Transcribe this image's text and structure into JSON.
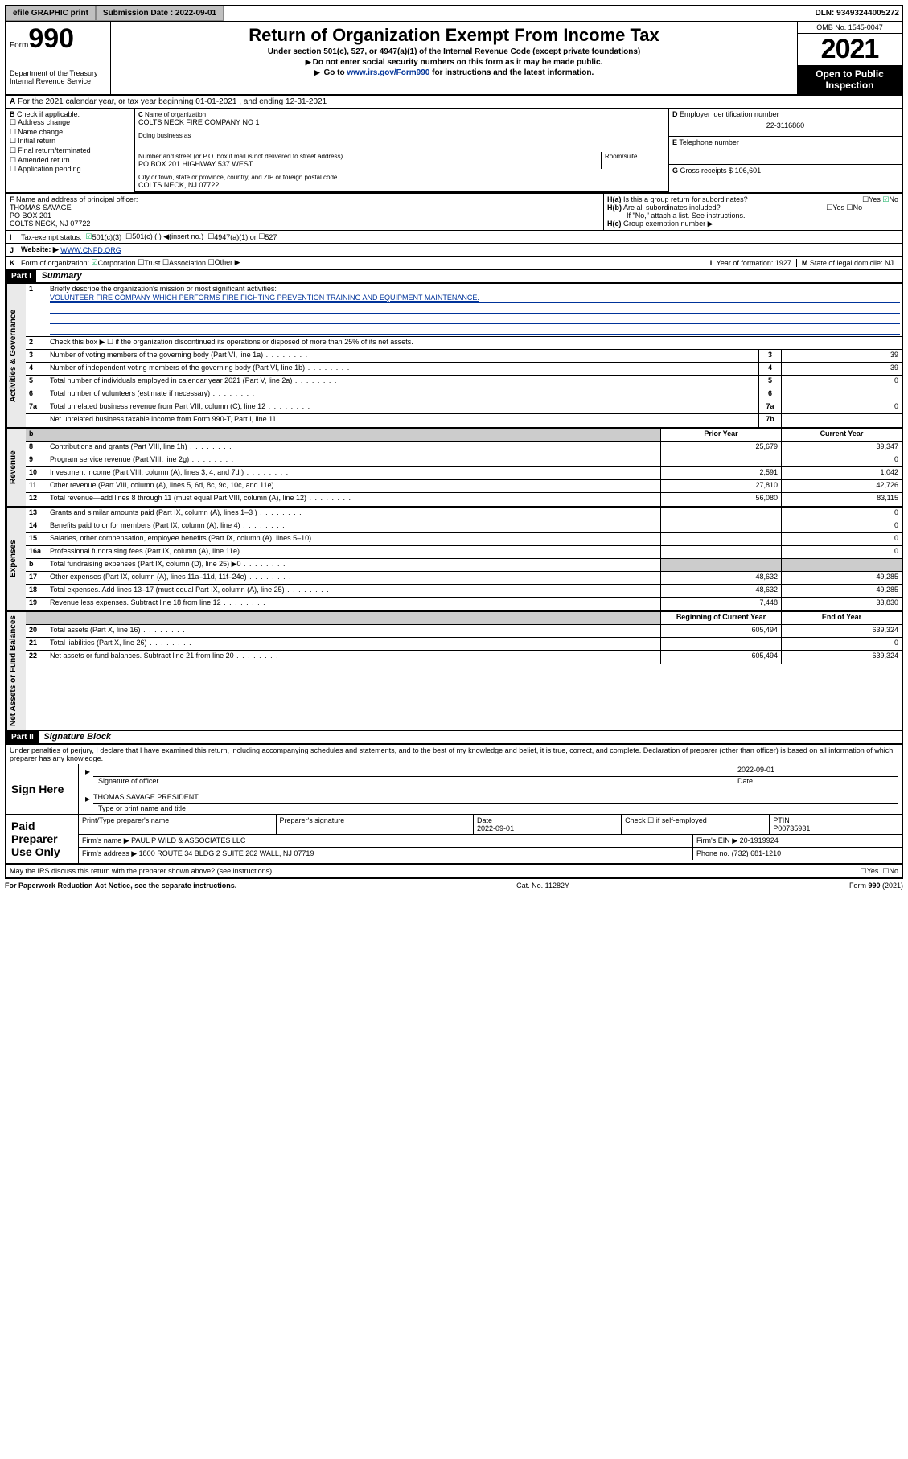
{
  "topbar": {
    "efile": "efile GRAPHIC print",
    "subdate_lbl": "Submission Date : 2022-09-01",
    "dln": "DLN: 93493244005272"
  },
  "header": {
    "form_word": "Form",
    "form_num": "990",
    "dept": "Department of the Treasury\nInternal Revenue Service",
    "title": "Return of Organization Exempt From Income Tax",
    "sub1": "Under section 501(c), 527, or 4947(a)(1) of the Internal Revenue Code (except private foundations)",
    "sub2": "Do not enter social security numbers on this form as it may be made public.",
    "sub3_prefix": "Go to ",
    "sub3_link": "www.irs.gov/Form990",
    "sub3_suffix": " for instructions and the latest information.",
    "omb": "OMB No. 1545-0047",
    "year": "2021",
    "inspect1": "Open to Public",
    "inspect2": "Inspection"
  },
  "rowA": "For the 2021 calendar year, or tax year beginning 01-01-2021   , and ending 12-31-2021",
  "sectionB": {
    "label": "Check if applicable:",
    "items": [
      "Address change",
      "Name change",
      "Initial return",
      "Final return/terminated",
      "Amended return",
      "Application pending"
    ]
  },
  "sectionC": {
    "name_lbl": "Name of organization",
    "name": "COLTS NECK FIRE COMPANY NO 1",
    "dba_lbl": "Doing business as",
    "addr_lbl": "Number and street (or P.O. box if mail is not delivered to street address)",
    "addr": "PO BOX 201\nPO BOX 201 HIGHWAY 537 WEST",
    "room_lbl": "Room/suite",
    "city_lbl": "City or town, state or province, country, and ZIP or foreign postal code",
    "city": "COLTS NECK, NJ  07722"
  },
  "sectionD": {
    "lbl": "Employer identification number",
    "val": "22-3116860"
  },
  "sectionE": {
    "lbl": "Telephone number",
    "val": ""
  },
  "sectionG": {
    "lbl": "Gross receipts $",
    "val": "106,601"
  },
  "sectionF": {
    "lbl": "Name and address of principal officer:",
    "name": "THOMAS SAVAGE",
    "addr1": "PO BOX 201",
    "addr2": "COLTS NECK, NJ  07722"
  },
  "sectionH": {
    "a": "Is this a group return for subordinates?",
    "b": "Are all subordinates included?",
    "bnote": "If \"No,\" attach a list. See instructions.",
    "c": "Group exemption number ▶"
  },
  "sectionI": {
    "lbl": "Tax-exempt status:",
    "opts": [
      "501(c)(3)",
      "501(c) (  ) ◀(insert no.)",
      "4947(a)(1) or",
      "527"
    ]
  },
  "sectionJ": {
    "lbl": "Website: ▶",
    "val": "WWW.CNFD.ORG"
  },
  "sectionK": {
    "lbl": "Form of organization:",
    "opts": [
      "Corporation",
      "Trust",
      "Association",
      "Other ▶"
    ]
  },
  "sectionL": {
    "lbl": "Year of formation:",
    "val": "1927"
  },
  "sectionM": {
    "lbl": "State of legal domicile:",
    "val": "NJ"
  },
  "partI": {
    "hd": "Part I",
    "title": "Summary",
    "l1_lbl": "Briefly describe the organization's mission or most significant activities:",
    "mission": "VOLUNTEER FIRE COMPANY WHICH PERFORMS FIRE FIGHTING PREVENTION TRAINING AND EQUIPMENT MAINTENANCE.",
    "l2": "Check this box ▶ ☐  if the organization discontinued its operations or disposed of more than 25% of its net assets.",
    "rows_gov": [
      {
        "n": "3",
        "t": "Number of voting members of the governing body (Part VI, line 1a)",
        "b": "3",
        "v": "39"
      },
      {
        "n": "4",
        "t": "Number of independent voting members of the governing body (Part VI, line 1b)",
        "b": "4",
        "v": "39"
      },
      {
        "n": "5",
        "t": "Total number of individuals employed in calendar year 2021 (Part V, line 2a)",
        "b": "5",
        "v": "0"
      },
      {
        "n": "6",
        "t": "Total number of volunteers (estimate if necessary)",
        "b": "6",
        "v": ""
      },
      {
        "n": "7a",
        "t": "Total unrelated business revenue from Part VIII, column (C), line 12",
        "b": "7a",
        "v": "0"
      },
      {
        "n": "",
        "t": "Net unrelated business taxable income from Form 990-T, Part I, line 11",
        "b": "7b",
        "v": ""
      }
    ],
    "col_prior": "Prior Year",
    "col_curr": "Current Year",
    "rows_rev": [
      {
        "n": "8",
        "t": "Contributions and grants (Part VIII, line 1h)",
        "p": "25,679",
        "c": "39,347"
      },
      {
        "n": "9",
        "t": "Program service revenue (Part VIII, line 2g)",
        "p": "",
        "c": "0"
      },
      {
        "n": "10",
        "t": "Investment income (Part VIII, column (A), lines 3, 4, and 7d )",
        "p": "2,591",
        "c": "1,042"
      },
      {
        "n": "11",
        "t": "Other revenue (Part VIII, column (A), lines 5, 6d, 8c, 9c, 10c, and 11e)",
        "p": "27,810",
        "c": "42,726"
      },
      {
        "n": "12",
        "t": "Total revenue—add lines 8 through 11 (must equal Part VIII, column (A), line 12)",
        "p": "56,080",
        "c": "83,115"
      }
    ],
    "rows_exp": [
      {
        "n": "13",
        "t": "Grants and similar amounts paid (Part IX, column (A), lines 1–3 )",
        "p": "",
        "c": "0"
      },
      {
        "n": "14",
        "t": "Benefits paid to or for members (Part IX, column (A), line 4)",
        "p": "",
        "c": "0"
      },
      {
        "n": "15",
        "t": "Salaries, other compensation, employee benefits (Part IX, column (A), lines 5–10)",
        "p": "",
        "c": "0"
      },
      {
        "n": "16a",
        "t": "Professional fundraising fees (Part IX, column (A), line 11e)",
        "p": "",
        "c": "0"
      },
      {
        "n": "b",
        "t": "Total fundraising expenses (Part IX, column (D), line 25) ▶0",
        "p": "shade",
        "c": "shade"
      },
      {
        "n": "17",
        "t": "Other expenses (Part IX, column (A), lines 11a–11d, 11f–24e)",
        "p": "48,632",
        "c": "49,285"
      },
      {
        "n": "18",
        "t": "Total expenses. Add lines 13–17 (must equal Part IX, column (A), line 25)",
        "p": "48,632",
        "c": "49,285"
      },
      {
        "n": "19",
        "t": "Revenue less expenses. Subtract line 18 from line 12",
        "p": "7,448",
        "c": "33,830"
      }
    ],
    "col_beg": "Beginning of Current Year",
    "col_end": "End of Year",
    "rows_net": [
      {
        "n": "20",
        "t": "Total assets (Part X, line 16)",
        "p": "605,494",
        "c": "639,324"
      },
      {
        "n": "21",
        "t": "Total liabilities (Part X, line 26)",
        "p": "",
        "c": "0"
      },
      {
        "n": "22",
        "t": "Net assets or fund balances. Subtract line 21 from line 20",
        "p": "605,494",
        "c": "639,324"
      }
    ]
  },
  "vtabs": {
    "gov": "Activities & Governance",
    "rev": "Revenue",
    "exp": "Expenses",
    "net": "Net Assets or Fund Balances"
  },
  "partII": {
    "hd": "Part II",
    "title": "Signature Block",
    "decl": "Under penalties of perjury, I declare that I have examined this return, including accompanying schedules and statements, and to the best of my knowledge and belief, it is true, correct, and complete. Declaration of preparer (other than officer) is based on all information of which preparer has any knowledge.",
    "sign_here": "Sign Here",
    "sig_officer": "Signature of officer",
    "sig_date": "2022-09-01",
    "date_lbl": "Date",
    "sig_name": "THOMAS SAVAGE PRESIDENT",
    "type_lbl": "Type or print name and title",
    "paid": "Paid Preparer Use Only",
    "prep_name_lbl": "Print/Type preparer's name",
    "prep_sig_lbl": "Preparer's signature",
    "prep_date": "2022-09-01",
    "chk_lbl": "Check ☐ if self-employed",
    "ptin_lbl": "PTIN",
    "ptin": "P00735931",
    "firm_name_lbl": "Firm's name  ▶",
    "firm_name": "PAUL P WILD & ASSOCIATES LLC",
    "firm_ein_lbl": "Firm's EIN ▶",
    "firm_ein": "20-1919924",
    "firm_addr_lbl": "Firm's address ▶",
    "firm_addr": "1800 ROUTE 34 BLDG 2 SUITE 202\nWALL, NJ  07719",
    "phone_lbl": "Phone no.",
    "phone": "(732) 681-1210",
    "discuss": "May the IRS discuss this return with the preparer shown above? (see instructions)"
  },
  "footer": {
    "pra": "For Paperwork Reduction Act Notice, see the separate instructions.",
    "cat": "Cat. No. 11282Y",
    "form": "Form 990 (2021)"
  },
  "yesno": {
    "yes": "Yes",
    "no": "No"
  }
}
